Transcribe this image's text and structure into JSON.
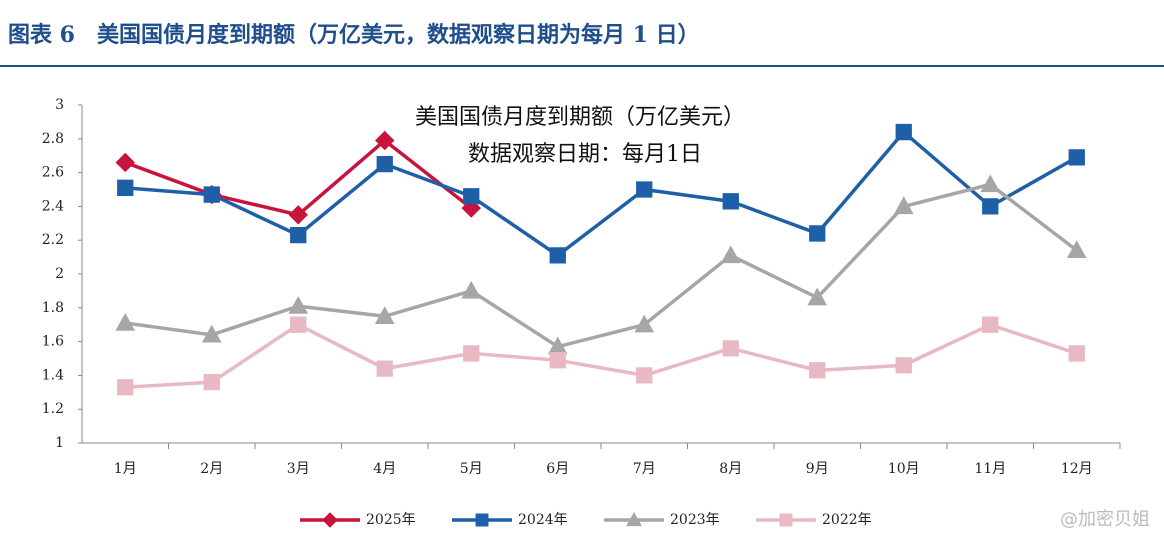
{
  "header": {
    "title": "图表 6　美国国债月度到期额（万亿美元，数据观察日期为每月 1 日）"
  },
  "chart_data": {
    "type": "line",
    "title": "美国国债月度到期额（万亿美元）",
    "subtitle": "数据观察日期：每月1日",
    "categories": [
      "1月",
      "2月",
      "3月",
      "4月",
      "5月",
      "6月",
      "7月",
      "8月",
      "9月",
      "10月",
      "11月",
      "12月"
    ],
    "series": [
      {
        "name": "2025年",
        "color": "#c8143c",
        "marker": "diamond",
        "values": [
          2.66,
          2.47,
          2.35,
          2.79,
          2.39,
          null,
          null,
          null,
          null,
          null,
          null,
          null
        ]
      },
      {
        "name": "2024年",
        "color": "#1f5fa8",
        "marker": "square",
        "values": [
          2.51,
          2.47,
          2.23,
          2.65,
          2.46,
          2.11,
          2.5,
          2.43,
          2.24,
          2.84,
          2.4,
          2.69
        ]
      },
      {
        "name": "2023年",
        "color": "#a6a6a6",
        "marker": "triangle",
        "values": [
          1.71,
          1.64,
          1.81,
          1.75,
          1.9,
          1.57,
          1.7,
          2.11,
          1.86,
          2.4,
          2.53,
          2.14
        ]
      },
      {
        "name": "2022年",
        "color": "#e8b9c3",
        "marker": "square",
        "values": [
          1.33,
          1.36,
          1.7,
          1.44,
          1.53,
          1.49,
          1.4,
          1.56,
          1.43,
          1.46,
          1.7,
          1.53
        ]
      }
    ],
    "ylim": [
      1,
      3
    ],
    "yticks": [
      1,
      1.2,
      1.4,
      1.6,
      1.8,
      2,
      2.2,
      2.4,
      2.6,
      2.8,
      3
    ],
    "grid": false,
    "legend": "bottom",
    "watermark": "@加密贝姐"
  }
}
